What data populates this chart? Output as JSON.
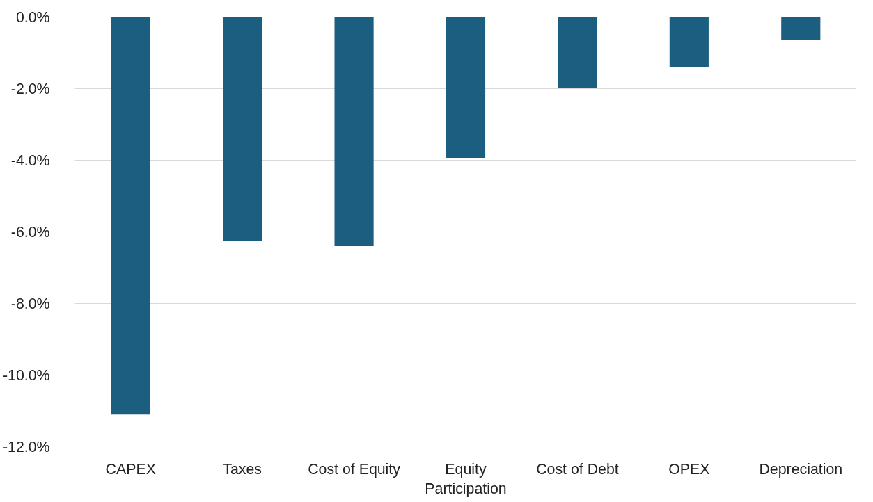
{
  "chart_data": {
    "type": "bar",
    "categories": [
      "CAPEX",
      "Taxes",
      "Cost of Equity",
      "Equity Participation",
      "Cost of Debt",
      "OPEX",
      "Depreciation"
    ],
    "values": [
      -11.1,
      -6.25,
      -6.4,
      -3.93,
      -1.98,
      -1.4,
      -0.64
    ],
    "color": "#1b5e7f",
    "ylim": [
      -12,
      0
    ],
    "yticks": [
      {
        "value": 0,
        "label": "0.0%"
      },
      {
        "value": -2,
        "label": "-2.0%"
      },
      {
        "value": -4,
        "label": "-4.0%"
      },
      {
        "value": -6,
        "label": "-6.0%"
      },
      {
        "value": -8,
        "label": "-8.0%"
      },
      {
        "value": -10,
        "label": "-10.0%"
      },
      {
        "value": -12,
        "label": "-12.0%"
      }
    ],
    "grid": "y"
  }
}
